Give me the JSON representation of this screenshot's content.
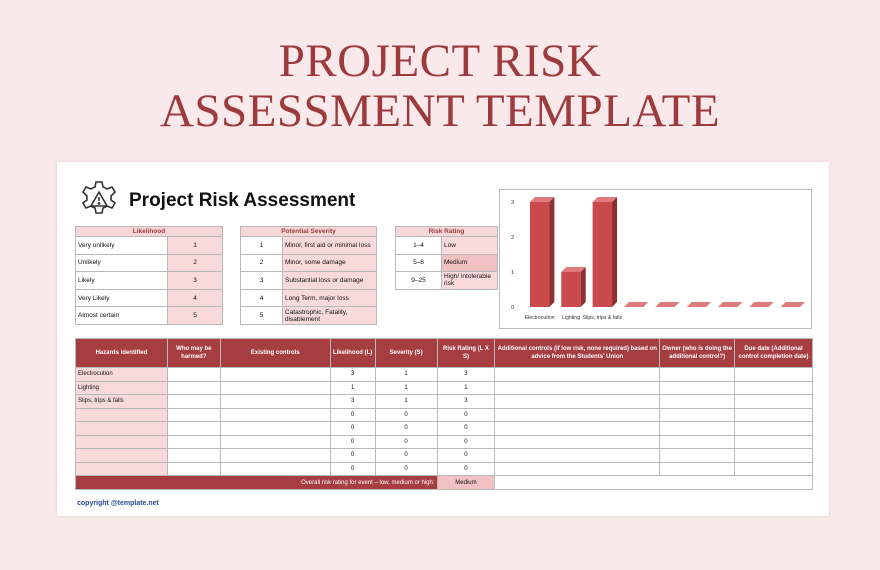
{
  "page_title_line1": "PROJECT RISK",
  "page_title_line2": "ASSESSMENT TEMPLATE",
  "sheet_title": "Project Risk Assessment",
  "likelihood": {
    "header": "Likelihood",
    "rows": [
      {
        "label": "Very unlikely",
        "value": "1"
      },
      {
        "label": "Unlikely",
        "value": "2"
      },
      {
        "label": "Likely",
        "value": "3"
      },
      {
        "label": "Very Likely",
        "value": "4"
      },
      {
        "label": "Almost certain",
        "value": "5"
      }
    ]
  },
  "severity": {
    "header": "Potential Severity",
    "rows": [
      {
        "value": "1",
        "label": "Minor, first aid or minimal loss"
      },
      {
        "value": "2",
        "label": "Minor, some damage"
      },
      {
        "value": "3",
        "label": "Substantial loss or damage"
      },
      {
        "value": "4",
        "label": "Long Term, major loss"
      },
      {
        "value": "5",
        "label": "Catastrophic, Fatality, disablement"
      }
    ]
  },
  "risk_rating": {
    "header": "Risk Rating",
    "rows": [
      {
        "range": "1–4",
        "label": "Low"
      },
      {
        "range": "5–8",
        "label": "Medium"
      },
      {
        "range": "9–25",
        "label": "High/ intolerable risk"
      }
    ]
  },
  "chart_data": {
    "type": "bar",
    "categories": [
      "Electrocution",
      "Lighting",
      "Slips, trips & falls",
      "",
      "",
      "",
      "",
      "",
      ""
    ],
    "values": [
      3,
      1,
      3,
      0,
      0,
      0,
      0,
      0,
      0
    ],
    "ylim": [
      0,
      3
    ],
    "yticks": [
      "0",
      "1",
      "2",
      "3"
    ],
    "bar_color": "#c9494d",
    "grid": false
  },
  "main_table": {
    "headers": [
      "Hazards identified",
      "Who may be harmed?",
      "Existing controls",
      "Likelihood (L)",
      "Severity (S)",
      "Risk Rating (L X S)",
      "Additional controls (if low risk, none required) based on advice from the Students' Union",
      "Owner (who is doing the additional control?)",
      "Due date (Additional control completion date)"
    ],
    "rows": [
      {
        "hazard": "Electrocution",
        "l": "3",
        "s": "1",
        "r": "3"
      },
      {
        "hazard": "Lighting",
        "l": "1",
        "s": "1",
        "r": "1"
      },
      {
        "hazard": "Slips, trips & falls",
        "l": "3",
        "s": "1",
        "r": "3"
      },
      {
        "hazard": "",
        "l": "0",
        "s": "0",
        "r": "0"
      },
      {
        "hazard": "",
        "l": "0",
        "s": "0",
        "r": "0"
      },
      {
        "hazard": "",
        "l": "0",
        "s": "0",
        "r": "0"
      },
      {
        "hazard": "",
        "l": "0",
        "s": "0",
        "r": "0"
      },
      {
        "hazard": "",
        "l": "0",
        "s": "0",
        "r": "0"
      }
    ],
    "footer_label": "Overall risk rating for event – low, medium or high:",
    "footer_value": "Medium"
  },
  "copyright": "copyright @template.net",
  "colors": {
    "accent": "#a63d41",
    "pink": "#f8dadb",
    "background": "#f9e9ea"
  }
}
